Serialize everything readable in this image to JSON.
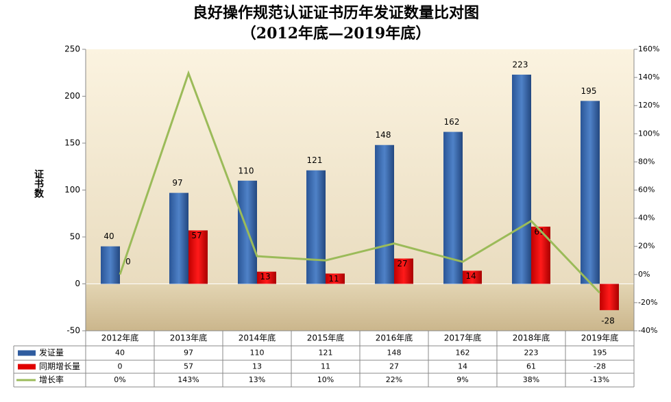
{
  "chart_data": {
    "type": "bar",
    "title": "良好操作规范认证证书历年发证数量比对图",
    "subtitle": "（2012年底—2019年底）",
    "y_label": "证书数",
    "categories": [
      "2012年底",
      "2013年底",
      "2014年底",
      "2015年底",
      "2016年底",
      "2017年底",
      "2018年底",
      "2019年底"
    ],
    "series": [
      {
        "name": "发证量",
        "color": "#2f5c9f",
        "values": [
          40,
          97,
          110,
          121,
          148,
          162,
          223,
          195
        ]
      },
      {
        "name": "同期增长量",
        "color": "#e00000",
        "values": [
          0,
          57,
          13,
          11,
          27,
          14,
          61,
          -28
        ]
      },
      {
        "name": "增长率",
        "color": "#9bbb59",
        "type": "line",
        "axis": "y2",
        "values": [
          0,
          143,
          13,
          10,
          22,
          9,
          38,
          -13
        ],
        "value_labels": [
          "0%",
          "143%",
          "13%",
          "10%",
          "22%",
          "9%",
          "38%",
          "-13%"
        ]
      }
    ],
    "ylim": [
      -50,
      250
    ],
    "yticks": [
      -50,
      0,
      50,
      100,
      150,
      200,
      250
    ],
    "y2lim": [
      -40,
      160
    ],
    "y2ticks": [
      {
        "value": -40,
        "label": "-40%"
      },
      {
        "value": -20,
        "label": "-20%"
      },
      {
        "value": 0,
        "label": "0%"
      },
      {
        "value": 20,
        "label": "20%"
      },
      {
        "value": 40,
        "label": "40%"
      },
      {
        "value": 60,
        "label": "60%"
      },
      {
        "value": 80,
        "label": "80%"
      },
      {
        "value": 100,
        "label": "100%"
      },
      {
        "value": 120,
        "label": "120%"
      },
      {
        "value": 140,
        "label": "140%"
      },
      {
        "value": 160,
        "label": "160%"
      }
    ]
  }
}
